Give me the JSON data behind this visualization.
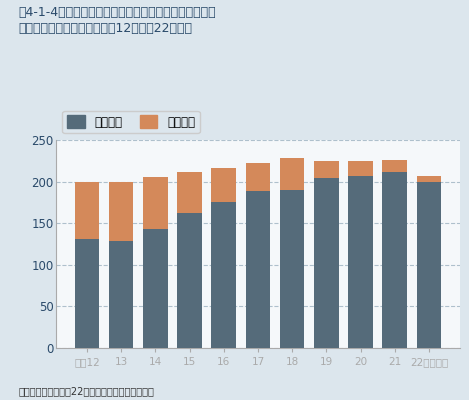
{
  "title_line1": "図4-1-4　対策地域における二酸化窒素の環境基準達成",
  "title_line2": "状況の推移（自排局）（平成12年度〜22年度）",
  "categories": [
    "平成12",
    "13",
    "14",
    "15",
    "16",
    "17",
    "18",
    "19",
    "20",
    "21",
    "22（年度）"
  ],
  "achieved": [
    131,
    129,
    143,
    162,
    176,
    189,
    190,
    204,
    207,
    211,
    199
  ],
  "total": [
    200,
    200,
    205,
    212,
    216,
    222,
    228,
    225,
    225,
    226,
    207
  ],
  "color_achieved": "#556b7a",
  "color_remaining": "#d4895a",
  "legend_achieved": "達成局数",
  "legend_total": "有効局数",
  "ylabel_max": 250,
  "yticks": [
    0,
    50,
    100,
    150,
    200,
    250
  ],
  "background_chart": "#f5f8fa",
  "background_fig": "#dce6ed",
  "source_text": "出典：環境省「平成22年度大気汚染状況報告書」",
  "grid_color": "#aec0cc",
  "spine_color": "#aaaaaa",
  "title_color": "#2a4a6a",
  "tick_color": "#2a4a6a"
}
